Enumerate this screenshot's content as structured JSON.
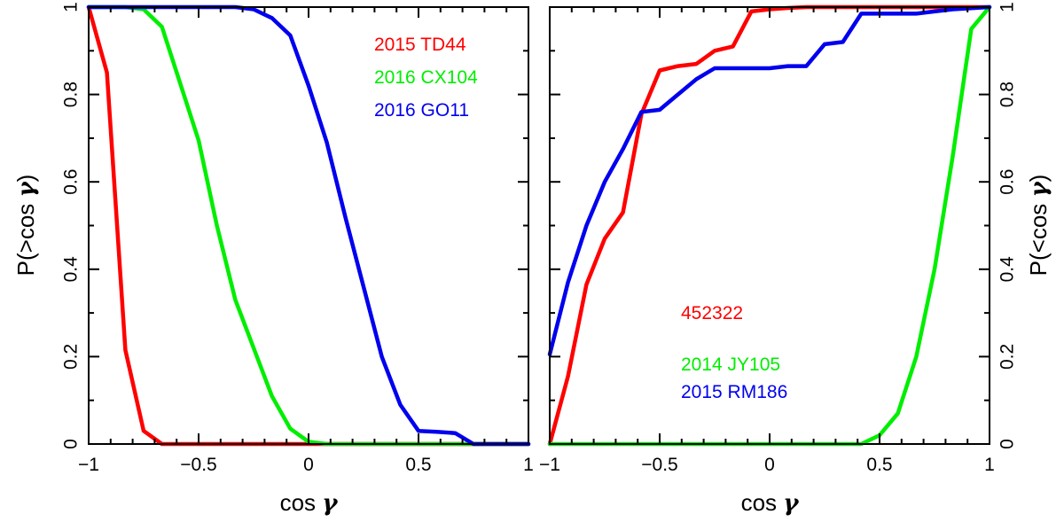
{
  "chart_data": [
    {
      "type": "line",
      "panel": "left",
      "xlabel": "cos γ",
      "xlabel_text": "cos",
      "xlabel_symbol": "γ",
      "ylabel": "P(>cos γ)",
      "ylabel_text": "P(>cos ",
      "ylabel_symbol": "γ",
      "ylabel_close": ")",
      "xlim": [
        -1,
        1
      ],
      "ylim": [
        0,
        1
      ],
      "xticks": [
        -1,
        -0.5,
        0,
        0.5,
        1
      ],
      "xtick_labels": [
        "−1",
        "−0.5",
        "0",
        "0.5",
        "1"
      ],
      "yticks": [
        0,
        0.2,
        0.4,
        0.6,
        0.8,
        1
      ],
      "ytick_labels": [
        "0",
        "0.2",
        "0.4",
        "0.6",
        "0.8",
        "1"
      ],
      "legend_position": "top-right",
      "series": [
        {
          "name": "2015 TD44",
          "color": "#ff0000",
          "x": [
            -1.0,
            -0.917,
            -0.833,
            -0.75,
            -0.667,
            -0.5,
            0.0,
            0.5,
            1.0
          ],
          "y": [
            1.0,
            0.85,
            0.215,
            0.03,
            0.0,
            0.0,
            0.0,
            0.0,
            0.0
          ]
        },
        {
          "name": "2016 CX104",
          "color": "#00ee00",
          "x": [
            -1.0,
            -0.833,
            -0.75,
            -0.667,
            -0.5,
            -0.417,
            -0.333,
            -0.25,
            -0.167,
            -0.083,
            0.0,
            0.083,
            0.5,
            1.0
          ],
          "y": [
            1.0,
            1.0,
            0.995,
            0.955,
            0.695,
            0.5,
            0.33,
            0.22,
            0.11,
            0.035,
            0.005,
            0.0,
            0.0,
            0.0
          ],
          "_note": ""
        },
        {
          "name": "2016 GO11",
          "color": "#0000ee",
          "x": [
            -1.0,
            -0.333,
            -0.25,
            -0.167,
            -0.083,
            0.0,
            0.083,
            0.167,
            0.25,
            0.333,
            0.417,
            0.5,
            0.583,
            0.667,
            0.75,
            0.833,
            1.0
          ],
          "y": [
            1.0,
            1.0,
            0.995,
            0.975,
            0.935,
            0.82,
            0.69,
            0.52,
            0.36,
            0.2,
            0.09,
            0.03,
            0.028,
            0.025,
            0.0,
            0.0,
            0.0
          ]
        }
      ]
    },
    {
      "type": "line",
      "panel": "right",
      "xlabel": "cos γ",
      "xlabel_text": "cos",
      "xlabel_symbol": "γ",
      "ylabel": "P(<cos γ)",
      "ylabel_text": "P(<cos ",
      "ylabel_symbol": "γ",
      "ylabel_close": ")",
      "xlim": [
        -1,
        1
      ],
      "ylim": [
        0,
        1
      ],
      "xticks": [
        -1,
        -0.5,
        0,
        0.5,
        1
      ],
      "xtick_labels": [
        "−1",
        "−0.5",
        "0",
        "0.5",
        "1"
      ],
      "yticks": [
        0,
        0.2,
        0.4,
        0.6,
        0.8,
        1
      ],
      "ytick_labels": [
        "0",
        "0.2",
        "0.4",
        "0.6",
        "0.8",
        "1"
      ],
      "legend_position": "bottom-center",
      "series": [
        {
          "name": "452322",
          "color": "#ff0000",
          "x": [
            -1.0,
            -0.917,
            -0.833,
            -0.75,
            -0.667,
            -0.583,
            -0.5,
            -0.417,
            -0.333,
            -0.25,
            -0.167,
            -0.083,
            0.0,
            0.083,
            0.167,
            0.25,
            0.5,
            1.0
          ],
          "y": [
            0.0,
            0.155,
            0.365,
            0.47,
            0.53,
            0.755,
            0.855,
            0.865,
            0.87,
            0.9,
            0.91,
            0.99,
            0.995,
            0.998,
            1.0,
            1.0,
            1.0,
            1.0
          ]
        },
        {
          "name": "2014 JY105",
          "color": "#00ee00",
          "x": [
            -1.0,
            0.0,
            0.417,
            0.5,
            0.583,
            0.667,
            0.75,
            0.833,
            0.917,
            1.0
          ],
          "y": [
            0.0,
            0.0,
            0.0,
            0.02,
            0.07,
            0.2,
            0.4,
            0.66,
            0.95,
            1.0
          ]
        },
        {
          "name": "2015 RM186",
          "color": "#0000ee",
          "x": [
            -1.0,
            -0.917,
            -0.833,
            -0.75,
            -0.667,
            -0.583,
            -0.5,
            -0.417,
            -0.333,
            -0.25,
            -0.167,
            -0.083,
            0.0,
            0.083,
            0.167,
            0.25,
            0.333,
            0.417,
            0.5,
            0.583,
            0.667,
            0.75,
            0.833,
            1.0
          ],
          "y": [
            0.205,
            0.37,
            0.5,
            0.6,
            0.675,
            0.76,
            0.765,
            0.8,
            0.835,
            0.86,
            0.86,
            0.86,
            0.86,
            0.865,
            0.865,
            0.915,
            0.92,
            0.985,
            0.985,
            0.985,
            0.985,
            0.99,
            0.995,
            1.0
          ]
        }
      ]
    }
  ]
}
